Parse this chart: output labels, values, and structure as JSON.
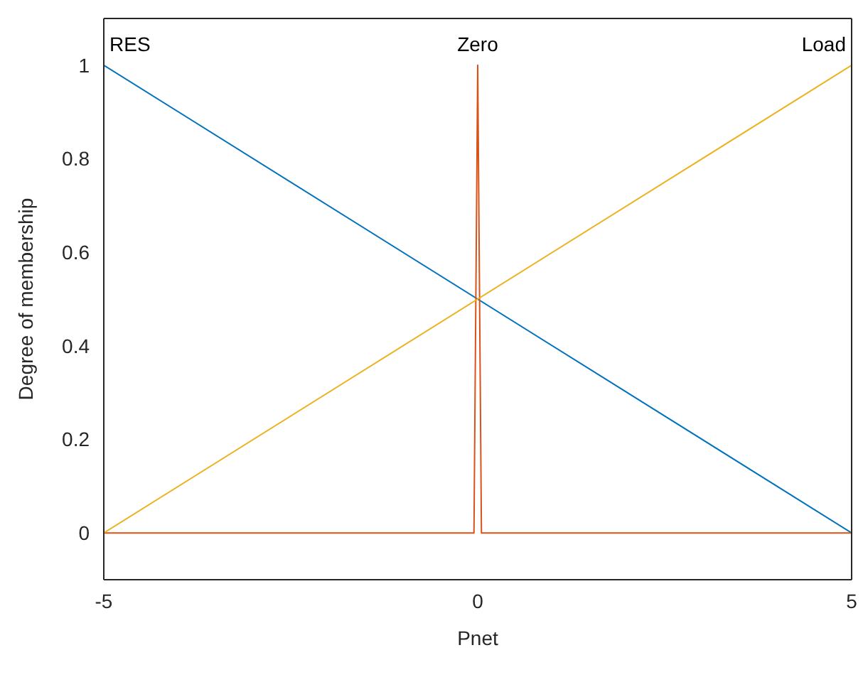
{
  "chart_data": {
    "type": "line",
    "xlabel": "Pnet",
    "ylabel": "Degree of membership",
    "xlim": [
      -5,
      5
    ],
    "xticks": [
      -5,
      0,
      5
    ],
    "ylim": [
      -0.1,
      1.1
    ],
    "yticks": [
      0,
      0.2,
      0.4,
      0.6,
      0.8,
      1
    ],
    "legend": false,
    "marker": "none",
    "line_style": "solid",
    "series": [
      {
        "name": "RES",
        "color": "#0072bd",
        "x": [
          -5,
          5
        ],
        "values": [
          1,
          0
        ]
      },
      {
        "name": "Zero",
        "color": "#d95319",
        "x": [
          -5,
          -0.05,
          0,
          0.05,
          5
        ],
        "values": [
          0,
          0,
          1,
          0,
          0
        ]
      },
      {
        "name": "Load",
        "color": "#edb120",
        "x": [
          -5,
          5
        ],
        "values": [
          0,
          1
        ]
      }
    ]
  }
}
